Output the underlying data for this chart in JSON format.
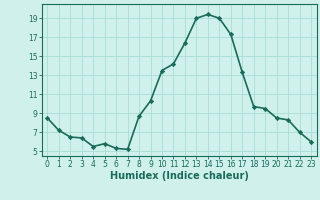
{
  "x": [
    0,
    1,
    2,
    3,
    4,
    5,
    6,
    7,
    8,
    9,
    10,
    11,
    12,
    13,
    14,
    15,
    16,
    17,
    18,
    19,
    20,
    21,
    22,
    23
  ],
  "y": [
    8.5,
    7.2,
    6.5,
    6.4,
    5.5,
    5.8,
    5.3,
    5.2,
    8.7,
    10.3,
    13.5,
    14.2,
    16.4,
    19.0,
    19.4,
    19.0,
    17.3,
    13.3,
    9.7,
    9.5,
    8.5,
    8.3,
    7.0,
    6.0
  ],
  "line_color": "#1a6b5a",
  "marker": "D",
  "marker_size": 2.2,
  "bg_color": "#cff0eb",
  "grid_color": "#a8ddd6",
  "xlabel": "Humidex (Indice chaleur)",
  "xlabel_fontsize": 7,
  "xlim": [
    -0.5,
    23.5
  ],
  "ylim": [
    4.5,
    20.5
  ],
  "yticks": [
    5,
    7,
    9,
    11,
    13,
    15,
    17,
    19
  ],
  "xticks": [
    0,
    1,
    2,
    3,
    4,
    5,
    6,
    7,
    8,
    9,
    10,
    11,
    12,
    13,
    14,
    15,
    16,
    17,
    18,
    19,
    20,
    21,
    22,
    23
  ],
  "tick_fontsize": 5.5,
  "line_width": 1.2
}
